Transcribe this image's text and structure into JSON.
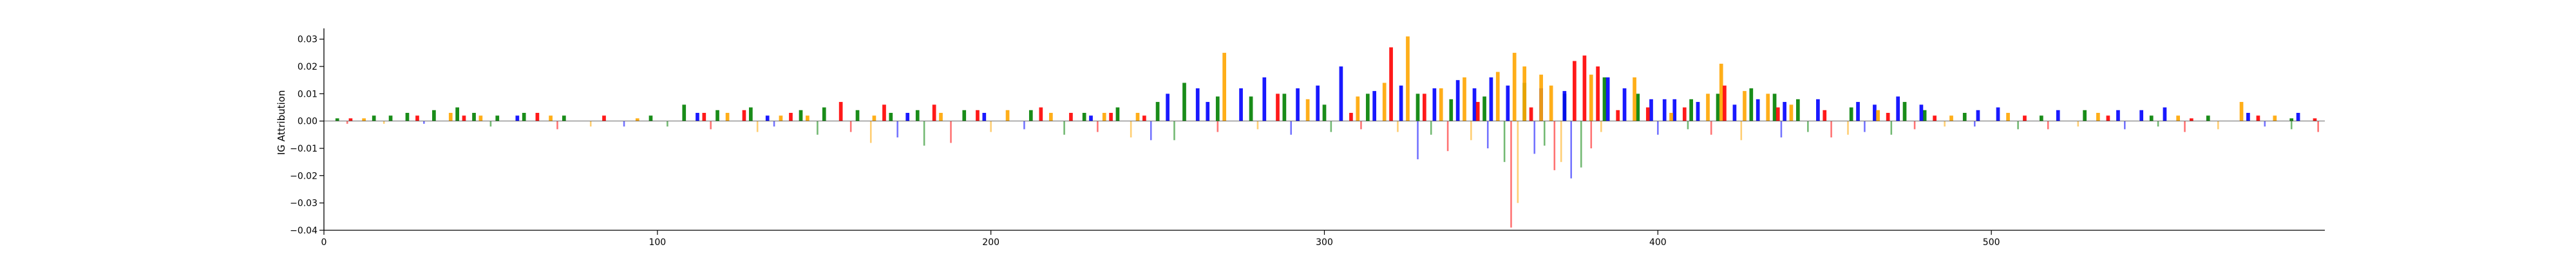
{
  "chart_data": {
    "type": "sequence-logo",
    "ylabel": "IG Attribution",
    "xlim": [
      0,
      600
    ],
    "ylim": [
      -0.04,
      0.033
    ],
    "xticks": [
      0,
      100,
      200,
      300,
      400,
      500
    ],
    "yticks": [
      -0.04,
      -0.03,
      -0.02,
      -0.01,
      0.0,
      0.01,
      0.02,
      0.03
    ],
    "ytick_labels": [
      "−0.04",
      "−0.03",
      "−0.02",
      "−0.01",
      "0.00",
      "0.01",
      "0.02",
      "0.03"
    ],
    "base_colors": {
      "A": "#008000",
      "C": "#0000ff",
      "G": "#ffa500",
      "T": "#ff0000"
    },
    "series": [
      {
        "base": "A",
        "points": [
          [
            4,
            0.001
          ],
          [
            15,
            0.002
          ],
          [
            20,
            0.002
          ],
          [
            25,
            0.003
          ],
          [
            33,
            0.004
          ],
          [
            40,
            0.005
          ],
          [
            45,
            0.003
          ],
          [
            52,
            0.002
          ],
          [
            60,
            0.003
          ],
          [
            72,
            0.002
          ],
          [
            98,
            0.002
          ],
          [
            108,
            0.006
          ],
          [
            118,
            0.004
          ],
          [
            128,
            0.005
          ],
          [
            143,
            0.004
          ],
          [
            150,
            0.005
          ],
          [
            160,
            0.004
          ],
          [
            170,
            0.003
          ],
          [
            178,
            0.004
          ],
          [
            192,
            0.004
          ],
          [
            212,
            0.004
          ],
          [
            228,
            0.003
          ],
          [
            238,
            0.005
          ],
          [
            250,
            0.007
          ],
          [
            258,
            0.014
          ],
          [
            268,
            0.009
          ],
          [
            278,
            0.009
          ],
          [
            288,
            0.01
          ],
          [
            300,
            0.006
          ],
          [
            313,
            0.01
          ],
          [
            328,
            0.01
          ],
          [
            338,
            0.008
          ],
          [
            348,
            0.009
          ],
          [
            360,
            0.014
          ],
          [
            372,
            0.01
          ],
          [
            384,
            0.016
          ],
          [
            394,
            0.01
          ],
          [
            410,
            0.008
          ],
          [
            418,
            0.01
          ],
          [
            428,
            0.012
          ],
          [
            435,
            0.01
          ],
          [
            442,
            0.008
          ],
          [
            458,
            0.005
          ],
          [
            474,
            0.007
          ],
          [
            480,
            0.004
          ],
          [
            492,
            0.003
          ],
          [
            515,
            0.002
          ],
          [
            528,
            0.004
          ],
          [
            548,
            0.002
          ],
          [
            565,
            0.002
          ],
          [
            590,
            0.001
          ]
        ]
      },
      {
        "base": "C",
        "points": [
          [
            58,
            0.002
          ],
          [
            112,
            0.003
          ],
          [
            133,
            0.002
          ],
          [
            175,
            0.003
          ],
          [
            198,
            0.003
          ],
          [
            230,
            0.002
          ],
          [
            253,
            0.01
          ],
          [
            262,
            0.012
          ],
          [
            265,
            0.007
          ],
          [
            275,
            0.012
          ],
          [
            282,
            0.016
          ],
          [
            292,
            0.012
          ],
          [
            298,
            0.013
          ],
          [
            305,
            0.02
          ],
          [
            315,
            0.011
          ],
          [
            323,
            0.013
          ],
          [
            333,
            0.012
          ],
          [
            340,
            0.015
          ],
          [
            345,
            0.012
          ],
          [
            350,
            0.016
          ],
          [
            355,
            0.013
          ],
          [
            365,
            0.012
          ],
          [
            372,
            0.011
          ],
          [
            385,
            0.016
          ],
          [
            390,
            0.012
          ],
          [
            398,
            0.008
          ],
          [
            402,
            0.008
          ],
          [
            405,
            0.008
          ],
          [
            412,
            0.007
          ],
          [
            423,
            0.006
          ],
          [
            430,
            0.008
          ],
          [
            438,
            0.007
          ],
          [
            448,
            0.008
          ],
          [
            460,
            0.007
          ],
          [
            465,
            0.006
          ],
          [
            472,
            0.009
          ],
          [
            479,
            0.006
          ],
          [
            496,
            0.004
          ],
          [
            502,
            0.005
          ],
          [
            520,
            0.004
          ],
          [
            538,
            0.004
          ],
          [
            545,
            0.004
          ],
          [
            552,
            0.005
          ],
          [
            577,
            0.003
          ],
          [
            592,
            0.003
          ]
        ]
      },
      {
        "base": "G",
        "points": [
          [
            12,
            0.001
          ],
          [
            38,
            0.003
          ],
          [
            47,
            0.002
          ],
          [
            68,
            0.002
          ],
          [
            94,
            0.001
          ],
          [
            121,
            0.003
          ],
          [
            137,
            0.002
          ],
          [
            145,
            0.002
          ],
          [
            165,
            0.002
          ],
          [
            185,
            0.003
          ],
          [
            205,
            0.004
          ],
          [
            218,
            0.003
          ],
          [
            234,
            0.003
          ],
          [
            244,
            0.003
          ],
          [
            270,
            0.025
          ],
          [
            295,
            0.008
          ],
          [
            310,
            0.009
          ],
          [
            318,
            0.014
          ],
          [
            325,
            0.031
          ],
          [
            335,
            0.012
          ],
          [
            342,
            0.016
          ],
          [
            352,
            0.018
          ],
          [
            357,
            0.025
          ],
          [
            360,
            0.02
          ],
          [
            365,
            0.017
          ],
          [
            368,
            0.013
          ],
          [
            380,
            0.017
          ],
          [
            393,
            0.016
          ],
          [
            404,
            0.003
          ],
          [
            415,
            0.01
          ],
          [
            419,
            0.021
          ],
          [
            426,
            0.011
          ],
          [
            433,
            0.01
          ],
          [
            440,
            0.006
          ],
          [
            466,
            0.004
          ],
          [
            488,
            0.002
          ],
          [
            505,
            0.003
          ],
          [
            532,
            0.003
          ],
          [
            556,
            0.002
          ],
          [
            575,
            0.007
          ],
          [
            585,
            0.002
          ]
        ]
      },
      {
        "base": "T",
        "points": [
          [
            8,
            0.001
          ],
          [
            28,
            0.002
          ],
          [
            42,
            0.002
          ],
          [
            64,
            0.003
          ],
          [
            84,
            0.002
          ],
          [
            114,
            0.003
          ],
          [
            126,
            0.004
          ],
          [
            140,
            0.003
          ],
          [
            155,
            0.007
          ],
          [
            168,
            0.006
          ],
          [
            183,
            0.006
          ],
          [
            196,
            0.004
          ],
          [
            215,
            0.005
          ],
          [
            224,
            0.003
          ],
          [
            236,
            0.003
          ],
          [
            246,
            0.002
          ],
          [
            286,
            0.01
          ],
          [
            308,
            0.003
          ],
          [
            320,
            0.027
          ],
          [
            330,
            0.01
          ],
          [
            346,
            0.007
          ],
          [
            362,
            0.005
          ],
          [
            375,
            0.022
          ],
          [
            378,
            0.024
          ],
          [
            382,
            0.02
          ],
          [
            388,
            0.004
          ],
          [
            397,
            0.005
          ],
          [
            408,
            0.005
          ],
          [
            420,
            0.013
          ],
          [
            436,
            0.005
          ],
          [
            450,
            0.004
          ],
          [
            469,
            0.003
          ],
          [
            483,
            0.002
          ],
          [
            510,
            0.002
          ],
          [
            535,
            0.002
          ],
          [
            560,
            0.001
          ],
          [
            580,
            0.002
          ],
          [
            597,
            0.001
          ]
        ]
      }
    ],
    "negative": [
      [
        7,
        -0.001
      ],
      [
        18,
        -0.001
      ],
      [
        30,
        -0.001
      ],
      [
        50,
        -0.002
      ],
      [
        70,
        -0.003
      ],
      [
        80,
        -0.002
      ],
      [
        90,
        -0.002
      ],
      [
        103,
        -0.002
      ],
      [
        116,
        -0.003
      ],
      [
        130,
        -0.004
      ],
      [
        135,
        -0.002
      ],
      [
        148,
        -0.005
      ],
      [
        158,
        -0.004
      ],
      [
        164,
        -0.008
      ],
      [
        172,
        -0.006
      ],
      [
        180,
        -0.009
      ],
      [
        188,
        -0.008
      ],
      [
        200,
        -0.004
      ],
      [
        210,
        -0.003
      ],
      [
        222,
        -0.005
      ],
      [
        232,
        -0.004
      ],
      [
        242,
        -0.006
      ],
      [
        248,
        -0.007
      ],
      [
        255,
        -0.007
      ],
      [
        268,
        -0.004
      ],
      [
        280,
        -0.003
      ],
      [
        290,
        -0.005
      ],
      [
        302,
        -0.004
      ],
      [
        311,
        -0.003
      ],
      [
        322,
        -0.004
      ],
      [
        328,
        -0.014
      ],
      [
        332,
        -0.005
      ],
      [
        337,
        -0.011
      ],
      [
        344,
        -0.007
      ],
      [
        349,
        -0.01
      ],
      [
        354,
        -0.015
      ],
      [
        356,
        -0.039
      ],
      [
        358,
        -0.03
      ],
      [
        363,
        -0.012
      ],
      [
        366,
        -0.009
      ],
      [
        369,
        -0.018
      ],
      [
        371,
        -0.015
      ],
      [
        374,
        -0.021
      ],
      [
        377,
        -0.017
      ],
      [
        380,
        -0.01
      ],
      [
        383,
        -0.004
      ],
      [
        400,
        -0.005
      ],
      [
        409,
        -0.003
      ],
      [
        416,
        -0.005
      ],
      [
        425,
        -0.007
      ],
      [
        437,
        -0.006
      ],
      [
        445,
        -0.004
      ],
      [
        452,
        -0.006
      ],
      [
        457,
        -0.005
      ],
      [
        462,
        -0.004
      ],
      [
        470,
        -0.005
      ],
      [
        477,
        -0.003
      ],
      [
        486,
        -0.002
      ],
      [
        495,
        -0.002
      ],
      [
        508,
        -0.003
      ],
      [
        517,
        -0.003
      ],
      [
        526,
        -0.002
      ],
      [
        540,
        -0.003
      ],
      [
        550,
        -0.002
      ],
      [
        558,
        -0.004
      ],
      [
        568,
        -0.003
      ],
      [
        582,
        -0.002
      ],
      [
        590,
        -0.003
      ],
      [
        598,
        -0.004
      ]
    ]
  }
}
